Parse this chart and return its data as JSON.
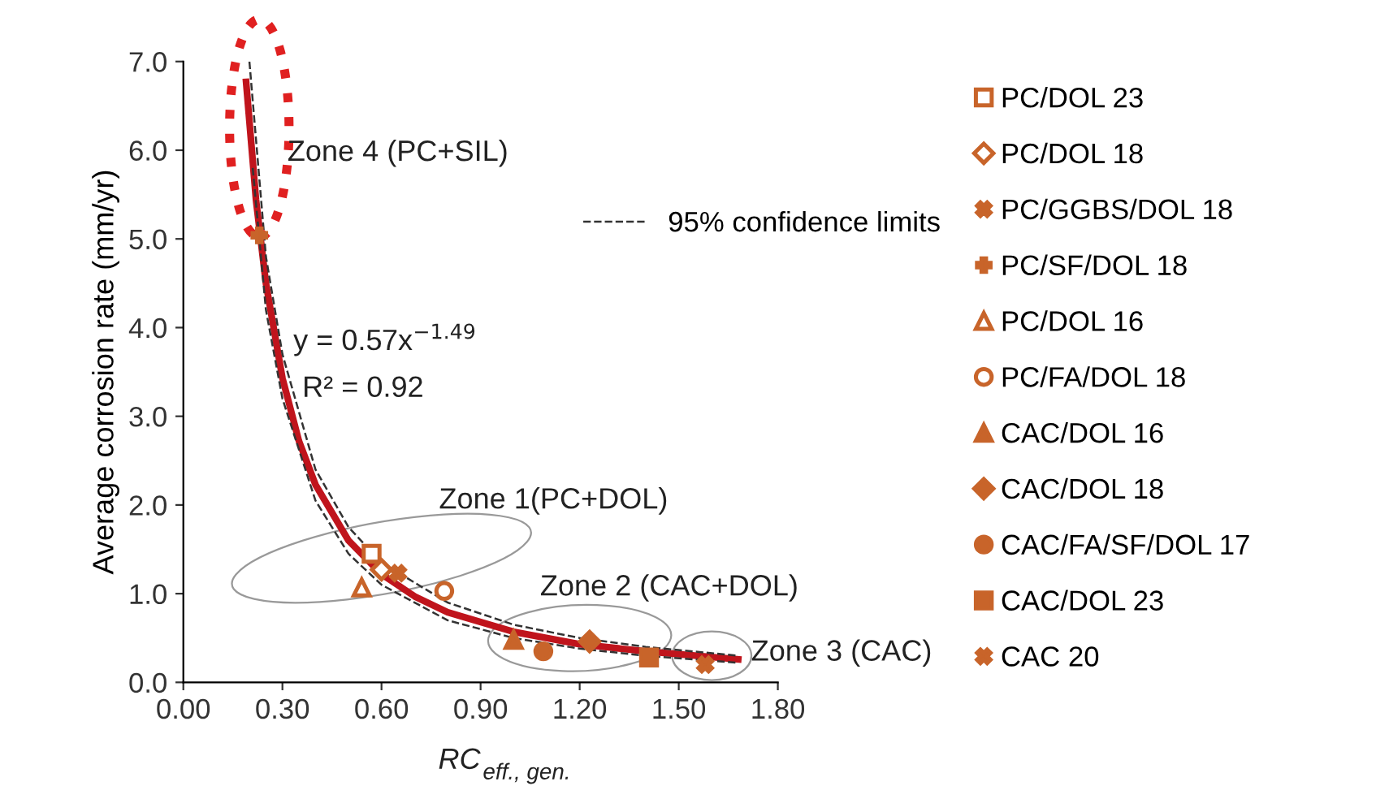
{
  "chart_data": {
    "type": "scatter",
    "xlabel": "RC$_{eff., gen.}$",
    "ylabel": "Average corrosion rate (mm/yr)",
    "xlim": [
      0,
      1.8
    ],
    "ylim": [
      0,
      7.0
    ],
    "xticks": [
      {
        "value": 0,
        "label": "0.00"
      },
      {
        "value": 0.3,
        "label": "0.30"
      },
      {
        "value": 0.6,
        "label": "0.60"
      },
      {
        "value": 0.9,
        "label": "0.90"
      },
      {
        "value": 1.2,
        "label": "1.20"
      },
      {
        "value": 1.5,
        "label": "1.50"
      },
      {
        "value": 1.8,
        "label": "1.80"
      }
    ],
    "yticks": [
      {
        "value": 0,
        "label": "0.0"
      },
      {
        "value": 1,
        "label": "1.0"
      },
      {
        "value": 2,
        "label": "2.0"
      },
      {
        "value": 3,
        "label": "3.0"
      },
      {
        "value": 4,
        "label": "4.0"
      },
      {
        "value": 5,
        "label": "5.0"
      },
      {
        "value": 6,
        "label": "6.0"
      },
      {
        "value": 7,
        "label": "7.0"
      }
    ],
    "grid": false,
    "legend": "right",
    "series": [
      {
        "name": "PC/DOL 23",
        "color": "#c8642a",
        "marker": "square",
        "colors": [
          "#ffffff"
        ],
        "x": [
          0.57
        ],
        "values": [
          1.45
        ]
      },
      {
        "name": "PC/DOL 18",
        "color": "#c8642a",
        "marker": "diamond",
        "colors": [
          "#ffffff"
        ],
        "x": [
          0.6
        ],
        "values": [
          1.27
        ]
      },
      {
        "name": "PC/GGBS/DOL 18",
        "color": "#c8642a",
        "marker": "cross",
        "x": [
          0.65
        ],
        "values": [
          1.23
        ]
      },
      {
        "name": "PC/SF/DOL 18",
        "color": "#c8642a",
        "marker": "plus",
        "x": [
          0.23
        ],
        "values": [
          5.04
        ]
      },
      {
        "name": "PC/DOL 16",
        "color": "#c8642a",
        "marker": "triangle",
        "colors": [
          "#ffffff"
        ],
        "x": [
          0.54
        ],
        "values": [
          1.07
        ]
      },
      {
        "name": "PC/FA/DOL 18",
        "color": "#c8642a",
        "marker": "circle",
        "colors": [
          "#ffffff"
        ],
        "x": [
          0.79
        ],
        "values": [
          1.03
        ]
      },
      {
        "name": "CAC/DOL 16",
        "color": "#c8642a",
        "marker": "triangle",
        "x": [
          1.0
        ],
        "values": [
          0.48
        ]
      },
      {
        "name": "CAC/DOL 18",
        "color": "#c8642a",
        "marker": "diamond",
        "x": [
          1.23
        ],
        "values": [
          0.46
        ]
      },
      {
        "name": "CAC/FA/SF/DOL 17",
        "color": "#c8642a",
        "marker": "circle",
        "x": [
          1.09
        ],
        "values": [
          0.35
        ]
      },
      {
        "name": "CAC/DOL 23",
        "color": "#c8642a",
        "marker": "square",
        "x": [
          1.41
        ],
        "values": [
          0.28
        ]
      },
      {
        "name": "CAC 20",
        "color": "#c8642a",
        "marker": "cross",
        "x": [
          1.58
        ],
        "values": [
          0.2
        ]
      },
      {
        "type": "line",
        "color": "#c0141c",
        "line_style": "solid",
        "marker": "none",
        "x": [
          0.19,
          0.22,
          0.25,
          0.3,
          0.35,
          0.4,
          0.5,
          0.6,
          0.7,
          0.8,
          1.0,
          1.2,
          1.4,
          1.68
        ],
        "values": [
          6.77,
          5.44,
          4.5,
          3.43,
          2.72,
          2.23,
          1.6,
          1.22,
          0.97,
          0.79,
          0.57,
          0.43,
          0.35,
          0.26
        ]
      },
      {
        "type": "line",
        "name": "95% confidence limits",
        "color": "#333333",
        "line_style": "dashed",
        "marker": "none",
        "x": [
          0.2,
          0.25,
          0.3,
          0.4,
          0.5,
          0.6,
          0.8,
          1.0,
          1.2,
          1.4,
          1.68
        ],
        "values": [
          7.0,
          4.8,
          3.7,
          2.4,
          1.75,
          1.35,
          0.9,
          0.65,
          0.5,
          0.4,
          0.3
        ]
      },
      {
        "type": "line",
        "color": "#333333",
        "line_style": "dashed",
        "marker": "none",
        "x": [
          0.21,
          0.25,
          0.3,
          0.4,
          0.5,
          0.6,
          0.8,
          1.0,
          1.2,
          1.4,
          1.68
        ],
        "values": [
          5.8,
          4.2,
          3.2,
          2.05,
          1.45,
          1.1,
          0.7,
          0.5,
          0.38,
          0.3,
          0.22
        ]
      }
    ],
    "annotations": [
      "Zone 4 (PC+SIL)",
      "y = 0.57x$^{−1.49}$",
      "R² = 0.92",
      "Zone 1(PC+DOL)",
      "Zone 2 (CAC+DOL)",
      "Zone 3 (CAC)"
    ]
  }
}
